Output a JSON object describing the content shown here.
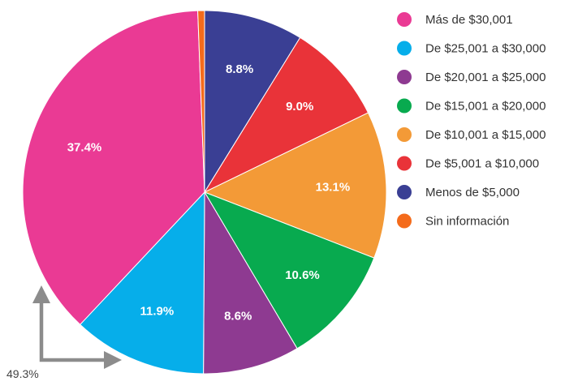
{
  "chart_data": {
    "type": "pie",
    "title": "",
    "slices": [
      {
        "label": "Menos de $5,000",
        "value": 8.8,
        "display": "8.8%",
        "color": "#3a3f94"
      },
      {
        "label": "De $5,001 a $10,000",
        "value": 9.0,
        "display": "9.0%",
        "color": "#e93339"
      },
      {
        "label": "De $10,001 a $15,000",
        "value": 13.1,
        "display": "13.1%",
        "color": "#f39a37"
      },
      {
        "label": "De $15,001 a $20,000",
        "value": 10.6,
        "display": "10.6%",
        "color": "#08aa4f"
      },
      {
        "label": "De $20,001 a $25,000",
        "value": 8.6,
        "display": "8.6%",
        "color": "#8e3a91"
      },
      {
        "label": "De $25,001 a $30,000",
        "value": 11.9,
        "display": "11.9%",
        "color": "#06aeea"
      },
      {
        "label": "Más de $30,001",
        "value": 37.4,
        "display": "37.4%",
        "color": "#ea3a94"
      },
      {
        "label": "Sin información",
        "value": 0.6,
        "display": "",
        "color": "#f46b1b"
      }
    ],
    "legend": {
      "placement": "right",
      "items": [
        {
          "label": "Más de $30,001",
          "color": "#ea3a94"
        },
        {
          "label": "De $25,001 a $30,000",
          "color": "#06aeea"
        },
        {
          "label": "De $20,001 a $25,000",
          "color": "#8e3a91"
        },
        {
          "label": "De $15,001 a $20,000",
          "color": "#08aa4f"
        },
        {
          "label": "De $10,001 a $15,000",
          "color": "#f39a37"
        },
        {
          "label": "De $5,001 a $10,000",
          "color": "#e93339"
        },
        {
          "label": "Menos de $5,000",
          "color": "#3a3f94"
        },
        {
          "label": "Sin información",
          "color": "#f46b1b"
        }
      ]
    },
    "annotation": {
      "text": "49.3%",
      "color": "#8c8c8c"
    }
  }
}
